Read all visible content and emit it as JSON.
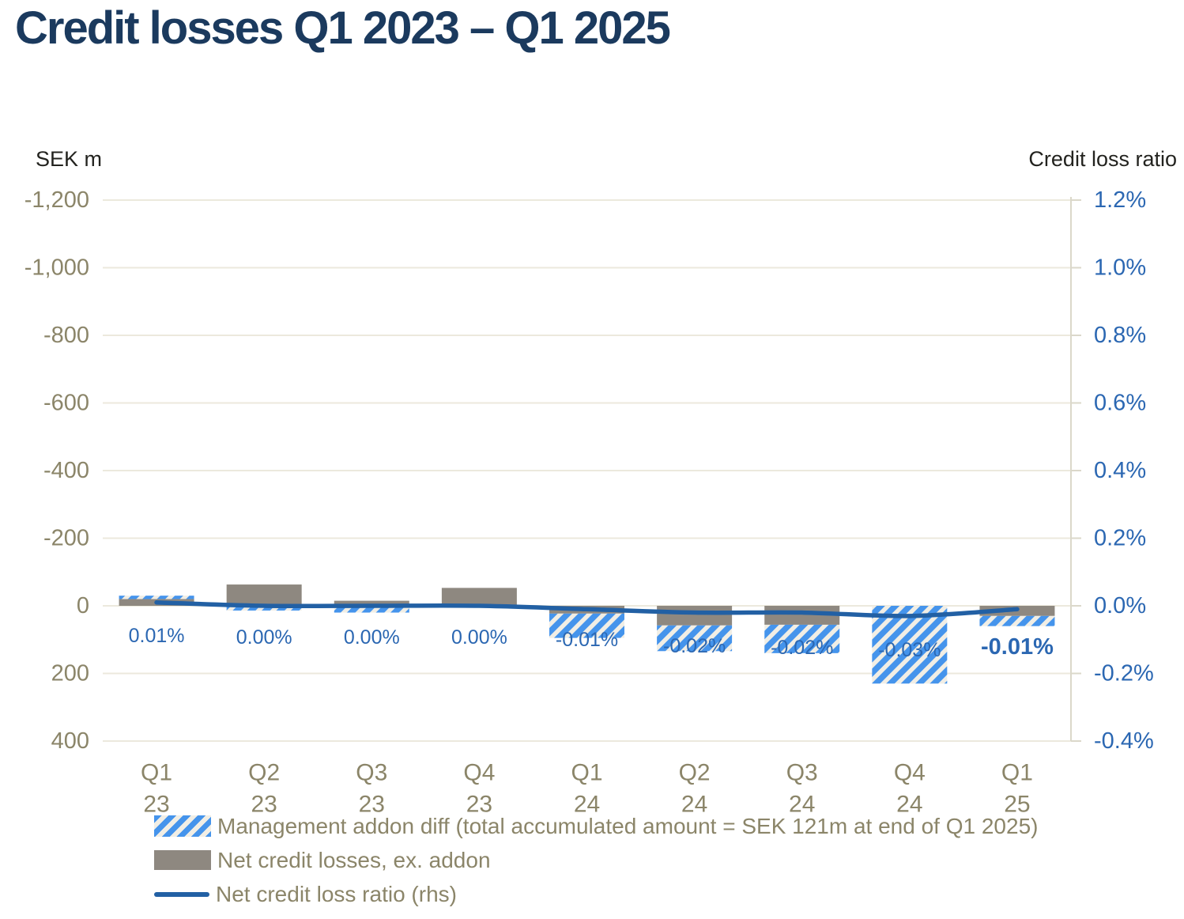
{
  "title": "Credit losses Q1 2023 – Q1 2025",
  "left_axis_header": "SEK m",
  "right_axis_header": "Credit loss ratio",
  "legend": {
    "addon": "Management addon diff (total accumulated amount = SEK 121m at end of Q1 2025)",
    "net_losses": "Net credit losses, ex. addon",
    "ratio": "Net credit loss ratio (rhs)"
  },
  "colors": {
    "title_navy": "#1b3a5e",
    "header_text": "#23231f",
    "olive_text": "#8b8569",
    "blue_label": "#2b67b2",
    "line_blue": "#2260a4",
    "hatch_blue": "#4594ec",
    "hatch_bg": "#f1eee5",
    "bar_gray": "#8e8880",
    "gridline": "#ece9dd",
    "axis_line": "#dbd8ca"
  },
  "chart_data": {
    "type": "combo",
    "title": "Credit losses Q1 2023 – Q1 2025",
    "grid": true,
    "legend_position": "bottom-left",
    "left_axis": {
      "title": "SEK m",
      "inverted": true,
      "top_value": -1200,
      "bottom_value": 400,
      "tick_step": 200,
      "tick_labels": [
        "-1,200",
        "-1,000",
        "-800",
        "-600",
        "-400",
        "-200",
        "0",
        "200",
        "400"
      ]
    },
    "right_axis": {
      "title": "Credit loss ratio",
      "top_value": 1.2,
      "bottom_value": -0.4,
      "tick_step": 0.2,
      "tick_labels": [
        "1.2%",
        "1.0%",
        "0.8%",
        "0.6%",
        "0.4%",
        "0.2%",
        "0.0%",
        "-0.2%",
        "-0.4%"
      ]
    },
    "categories": [
      [
        "Q1",
        "23"
      ],
      [
        "Q2",
        "23"
      ],
      [
        "Q3",
        "23"
      ],
      [
        "Q4",
        "23"
      ],
      [
        "Q1",
        "24"
      ],
      [
        "Q2",
        "24"
      ],
      [
        "Q3",
        "24"
      ],
      [
        "Q4",
        "24"
      ],
      [
        "Q1",
        "25"
      ]
    ],
    "series": [
      {
        "name": "Net credit losses, ex. addon",
        "type": "bar",
        "axis": "left",
        "unit": "SEK m (plotted on inverted axis; negative = above zero line)",
        "values": [
          -20,
          -63,
          -15,
          -53,
          23,
          58,
          56,
          0,
          30
        ]
      },
      {
        "name": "Management addon diff (total accumulated amount = SEK 121m at end of Q1 2025)",
        "type": "bar-hatched",
        "axis": "left",
        "unit": "SEK m (stacked beyond gray bar when same sign)",
        "values": [
          -10,
          14,
          20,
          0,
          72,
          76,
          84,
          230,
          30
        ]
      },
      {
        "name": "Net credit loss ratio (rhs)",
        "type": "line",
        "axis": "right",
        "unit": "%",
        "values": [
          0.01,
          0.0,
          0.0,
          0.0,
          -0.01,
          -0.02,
          -0.02,
          -0.03,
          -0.01
        ]
      }
    ],
    "point_labels": [
      "0.01%",
      "0.00%",
      "0.00%",
      "0.00%",
      "-0.01%",
      "-0.02%",
      "-0.02%",
      "-0.03%",
      "-0.01%"
    ],
    "point_label_bold_index": 8
  }
}
